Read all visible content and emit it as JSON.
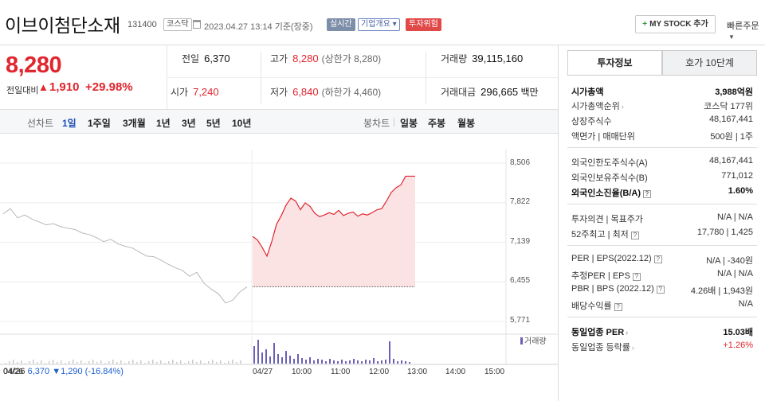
{
  "header": {
    "name": "이브이첨단소재",
    "code": "131400",
    "market": "코스닥",
    "asof": "2023.04.27 13:14  기준(장중)",
    "realtime": "실시간",
    "corp_overview": "기업개요",
    "warning": "투자위험",
    "mystock_button": "MY STOCK 추가",
    "quick_order": "빠른주문"
  },
  "price": {
    "current": "8,280",
    "change_label": "전일대비",
    "change": "1,910",
    "change_pct": "+29.98%"
  },
  "quote": {
    "prev_close": {
      "label": "전일",
      "value": "6,370"
    },
    "high": {
      "label": "고가",
      "value": "8,280",
      "sub": "(상한가 8,280)"
    },
    "volume": {
      "label": "거래량",
      "value": "39,115,160"
    },
    "open": {
      "label": "시가",
      "value": "7,240"
    },
    "low": {
      "label": "저가",
      "value": "6,840",
      "sub": "(하한가 4,460)"
    },
    "amount": {
      "label": "거래대금",
      "value": "296,665",
      "unit": "백만"
    }
  },
  "toolbar": {
    "line_chart": "선차트",
    "periods": [
      "1일",
      "1주일",
      "3개월",
      "1년",
      "3년",
      "5년",
      "10년"
    ],
    "candle_chart": "봉차트",
    "candles": [
      "일봉",
      "주봉",
      "월봉"
    ]
  },
  "chart_data": {
    "type": "line",
    "y_ticks": [
      "8,506",
      "7,822",
      "7,139",
      "6,455",
      "5,771"
    ],
    "ylim": [
      5771,
      8506
    ],
    "x_ticks": [
      "04/26",
      "04/27",
      "10:00",
      "11:00",
      "12:00",
      "13:00",
      "14:00",
      "15:00"
    ],
    "prev_close_line": 6370,
    "volume_legend": "거래량",
    "prev_day": {
      "label": "04/26",
      "close": "6,370",
      "change": "▼1,290",
      "pct": "(-16.84%)"
    },
    "series": [
      {
        "values_prev_day": [
          7630,
          7720,
          7560,
          7610,
          7540,
          7490,
          7440,
          7460,
          7410,
          7380,
          7360,
          7300,
          7270,
          7220,
          7150,
          7190,
          7110,
          7070,
          7040,
          6970,
          6900,
          6890,
          6830,
          6760,
          6700,
          6650,
          6550,
          6620,
          6430,
          6330,
          6250,
          6090,
          6140,
          6280,
          6370
        ]
      },
      {
        "values_today": [
          7240,
          7180,
          7050,
          6900,
          7150,
          7450,
          7600,
          7780,
          7900,
          7850,
          7700,
          7820,
          7760,
          7640,
          7580,
          7610,
          7650,
          7620,
          7690,
          7600,
          7640,
          7660,
          7590,
          7630,
          7610,
          7650,
          7700,
          7720,
          7850,
          8000,
          8080,
          8130,
          8280,
          8280,
          8280
        ]
      }
    ]
  },
  "side": {
    "tab_active": "투자정보",
    "tab_other": "호가 10단계",
    "rows": [
      {
        "label": "시가총액",
        "value": "3,988억원"
      },
      {
        "label": "시가총액순위",
        "value": "코스닥 177위"
      },
      {
        "label": "상장주식수",
        "value": "48,167,441"
      },
      {
        "label": "액면가 | 매매단위",
        "value": "500원 | 1주"
      },
      {
        "label": "외국인한도주식수(A)",
        "value": "48,167,441"
      },
      {
        "label": "외국인보유주식수(B)",
        "value": "771,012"
      },
      {
        "label": "외국인소진율(B/A)",
        "value": "1.60%"
      },
      {
        "label": "투자의견 | 목표주가",
        "value": "N/A | N/A"
      },
      {
        "label": "52주최고 | 최저",
        "value": "17,780 | 1,425"
      },
      {
        "label": "PER | EPS(2022.12)",
        "value": "N/A | -340원"
      },
      {
        "label": "추정PER | EPS",
        "value": "N/A | N/A"
      },
      {
        "label": "PBR | BPS (2022.12)",
        "value": "4.26배 | 1,943원"
      },
      {
        "label": "배당수익률",
        "value": "N/A"
      },
      {
        "label": "동일업종 PER",
        "value": "15.03배"
      },
      {
        "label": "동일업종 등락률",
        "value": "+1.26%"
      }
    ]
  }
}
